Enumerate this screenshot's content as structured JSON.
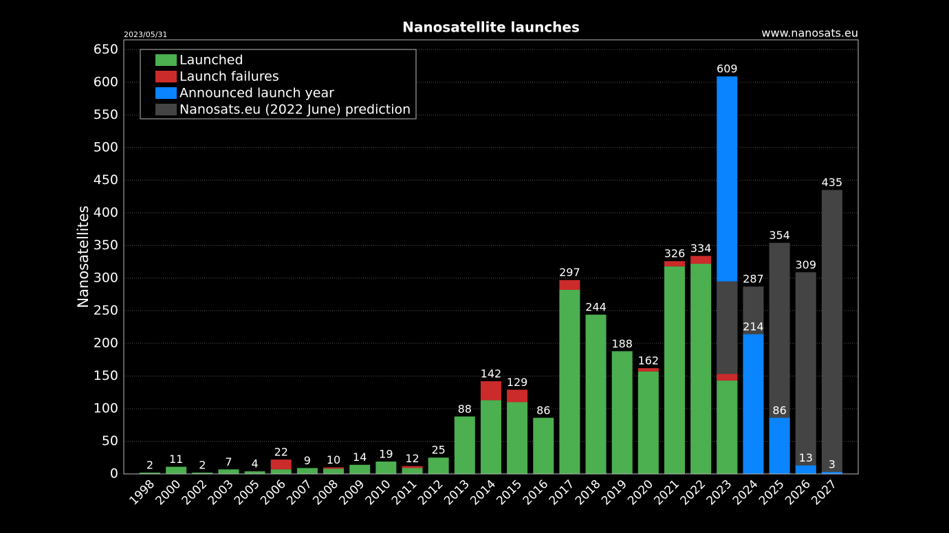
{
  "chart_data": {
    "type": "bar",
    "title": "Nanosatellite launches",
    "date": "2023/05/31",
    "source": "www.nanosats.eu",
    "y_label": "Nanosatellites",
    "categories": [
      "1998",
      "2000",
      "2002",
      "2003",
      "2005",
      "2006",
      "2007",
      "2008",
      "2009",
      "2010",
      "2011",
      "2012",
      "2013",
      "2014",
      "2015",
      "2016",
      "2017",
      "2018",
      "2019",
      "2020",
      "2021",
      "2022",
      "2023",
      "2024",
      "2025",
      "2026",
      "2027"
    ],
    "series": [
      {
        "name": "Launched",
        "color": "#4caf50",
        "values": [
          2,
          11,
          2,
          7,
          4,
          7,
          9,
          8,
          14,
          19,
          9,
          25,
          88,
          113,
          110,
          86,
          282,
          244,
          188,
          157,
          318,
          322,
          143,
          null,
          null,
          null,
          null
        ]
      },
      {
        "name": "Launch failures",
        "color": "#cc2b2b",
        "values": [
          0,
          0,
          0,
          0,
          0,
          15,
          0,
          2,
          0,
          0,
          3,
          0,
          0,
          29,
          19,
          0,
          15,
          0,
          0,
          5,
          8,
          12,
          10,
          null,
          null,
          null,
          null
        ]
      },
      {
        "name": "Announced launch year",
        "color": "#0a84ff",
        "values": [
          null,
          null,
          null,
          null,
          null,
          null,
          null,
          null,
          null,
          null,
          null,
          null,
          null,
          null,
          null,
          null,
          null,
          null,
          null,
          null,
          null,
          null,
          609,
          214,
          86,
          13,
          3
        ]
      },
      {
        "name": "Nanosats.eu (2022 June) prediction",
        "color": "#444444",
        "values": [
          null,
          null,
          null,
          null,
          null,
          null,
          null,
          null,
          null,
          null,
          null,
          null,
          null,
          null,
          null,
          null,
          null,
          null,
          null,
          null,
          null,
          null,
          295,
          287,
          354,
          309,
          435
        ]
      }
    ],
    "totals": [
      2,
      11,
      2,
      7,
      4,
      22,
      9,
      10,
      14,
      19,
      12,
      25,
      88,
      142,
      129,
      86,
      297,
      244,
      188,
      162,
      326,
      334,
      null,
      null,
      null,
      null,
      null
    ],
    "ylim": [
      0,
      665
    ],
    "yticks": [
      0,
      50,
      100,
      150,
      200,
      250,
      300,
      350,
      400,
      450,
      500,
      550,
      600,
      650
    ],
    "grid": true
  }
}
